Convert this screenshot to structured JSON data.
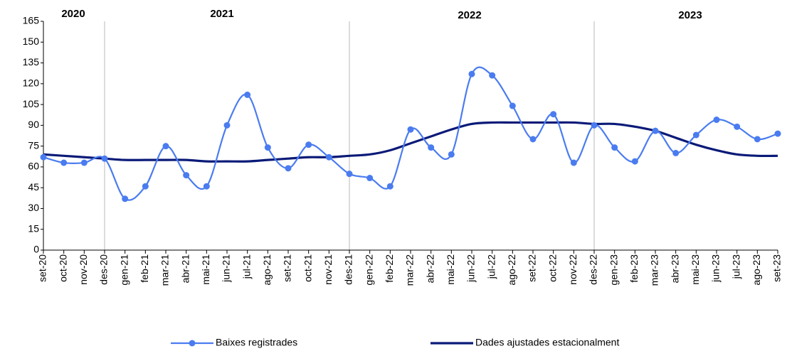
{
  "chart_data": {
    "type": "line",
    "year_labels": [
      "2020",
      "2021",
      "2022",
      "2023"
    ],
    "categories": [
      "set-20",
      "oct-20",
      "nov-20",
      "des-20",
      "gen-21",
      "feb-21",
      "mar-21",
      "abr-21",
      "mai-21",
      "jun-21",
      "jul-21",
      "ago-21",
      "set-21",
      "oct-21",
      "nov-21",
      "des-21",
      "gen-22",
      "feb-22",
      "mar-22",
      "abr-22",
      "mai-22",
      "jun-22",
      "jul-22",
      "ago-22",
      "set-22",
      "oct-22",
      "nov-22",
      "des-22",
      "gen-23",
      "feb-23",
      "mar-23",
      "abr-23",
      "mai-23",
      "jun-23",
      "jul-23",
      "ago-23",
      "set-23"
    ],
    "series": [
      {
        "name": "Baixes registrades",
        "color": "#4a7cf0",
        "markers": true,
        "values": [
          67,
          63,
          63,
          66,
          37,
          46,
          75,
          54,
          46,
          90,
          112,
          74,
          59,
          76,
          67,
          55,
          52,
          46,
          87,
          74,
          69,
          127,
          126,
          104,
          80,
          98,
          63,
          90,
          74,
          64,
          86,
          70,
          83,
          94,
          89,
          80,
          84
        ]
      },
      {
        "name": "Dades ajustades estacionalment",
        "color": "#0a1a78",
        "markers": false,
        "values": [
          69,
          68,
          67,
          66,
          65,
          65,
          65,
          65,
          64,
          64,
          64,
          65,
          66,
          67,
          67,
          68,
          69,
          72,
          77,
          82,
          87,
          91,
          92,
          92,
          92,
          92,
          92,
          91,
          91,
          89,
          86,
          81,
          76,
          72,
          69,
          68,
          68
        ]
      }
    ],
    "ylim": [
      0,
      165
    ],
    "yticks": [
      0,
      15,
      30,
      45,
      60,
      75,
      90,
      105,
      120,
      135,
      150,
      165
    ],
    "grid": false
  }
}
